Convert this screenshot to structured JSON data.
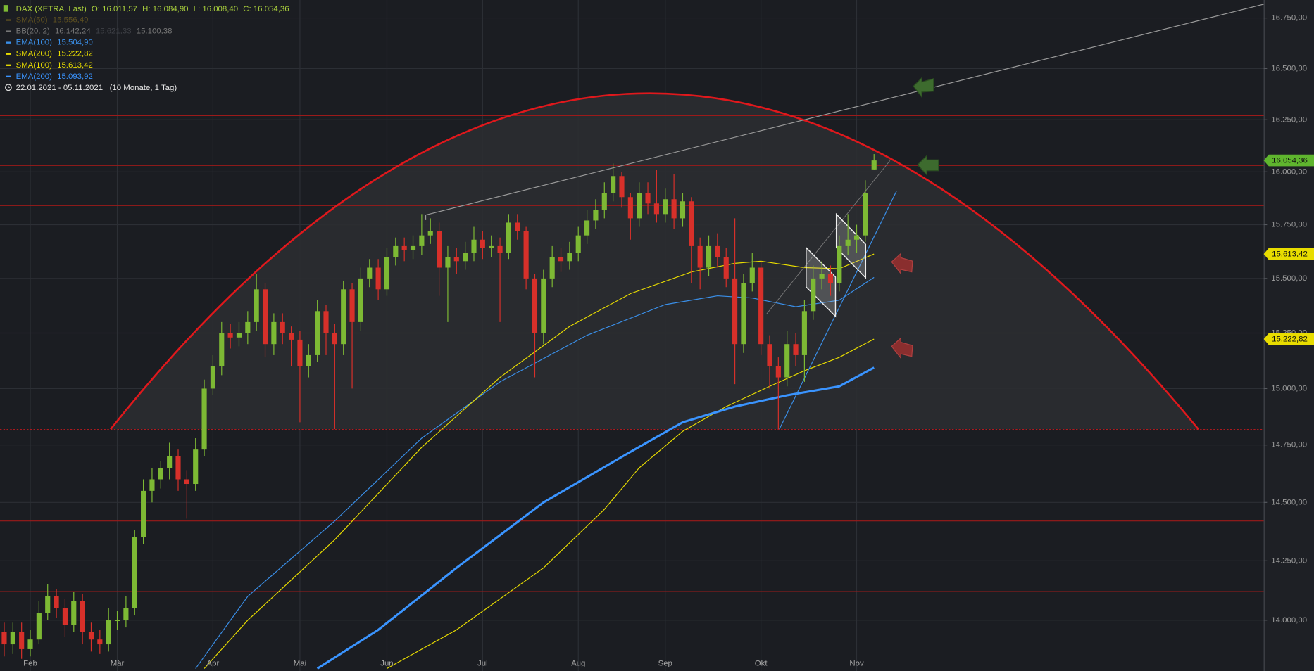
{
  "chart_data": {
    "type": "candlestick",
    "title": "DAX (XETRA, Last)",
    "ohlc_text": [
      "O: 16.011,57",
      "H: 16.084,90",
      "L: 16.008,40",
      "C: 16.054,36"
    ],
    "date_range": "22.01.2021 - 05.11.2021",
    "period": "(10 Monate, 1 Tag)",
    "log_scale": true,
    "grid": true,
    "ylim": [
      13790,
      16840
    ],
    "yticks": [
      {
        "value": 16750,
        "label": "16.750,00"
      },
      {
        "value": 16500,
        "label": "16.500,00"
      },
      {
        "value": 16250,
        "label": "16.250,00"
      },
      {
        "value": 16000,
        "label": "16.000,00"
      },
      {
        "value": 15750,
        "label": "15.750,00"
      },
      {
        "value": 15500,
        "label": "15.500,00"
      },
      {
        "value": 15250,
        "label": "15.250,00"
      },
      {
        "value": 15000,
        "label": "15.000,00"
      },
      {
        "value": 14750,
        "label": "14.750,00"
      },
      {
        "value": 14500,
        "label": "14.500,00"
      },
      {
        "value": 14250,
        "label": "14.250,00"
      },
      {
        "value": 14000,
        "label": "14.000,00"
      }
    ],
    "categories": [
      null,
      null,
      null,
      "Feb",
      null,
      null,
      null,
      null,
      null,
      null,
      null,
      null,
      null,
      "Mär",
      null,
      null,
      null,
      null,
      null,
      null,
      null,
      null,
      null,
      null,
      "Apr",
      null,
      null,
      null,
      null,
      null,
      null,
      null,
      null,
      null,
      "Mai",
      null,
      null,
      null,
      null,
      null,
      null,
      null,
      null,
      null,
      "Jun",
      null,
      null,
      null,
      null,
      null,
      null,
      null,
      null,
      null,
      null,
      "Jul",
      null,
      null,
      null,
      null,
      null,
      null,
      null,
      null,
      null,
      null,
      "Aug",
      null,
      null,
      null,
      null,
      null,
      null,
      null,
      null,
      null,
      "Sep",
      null,
      null,
      null,
      null,
      null,
      null,
      null,
      null,
      null,
      null,
      "Okt",
      null,
      null,
      null,
      null,
      null,
      null,
      null,
      null,
      null,
      null,
      "Nov",
      null,
      null
    ],
    "up_color": "#7db934",
    "down_color": "#d7302a",
    "last_label": "16.054,36",
    "open": [
      13950,
      13900,
      13950,
      13880,
      13920,
      14030,
      14100,
      14050,
      13980,
      14080,
      13950,
      13920,
      13900,
      14000,
      14000,
      14050,
      14350,
      14550,
      14600,
      14650,
      14700,
      14600,
      14580,
      14730,
      15000,
      15100,
      15250,
      15230,
      15250,
      15300,
      15450,
      15200,
      15300,
      15250,
      15220,
      15100,
      15150,
      15350,
      15250,
      15200,
      15450,
      15300,
      15500,
      15550,
      15450,
      15600,
      15650,
      15630,
      15650,
      15700,
      15720,
      15550,
      15600,
      15580,
      15620,
      15680,
      15640,
      15650,
      15620,
      15760,
      15720,
      15500,
      15250,
      15500,
      15600,
      15580,
      15620,
      15700,
      15770,
      15820,
      15900,
      15980,
      15880,
      15780,
      15900,
      15850,
      15800,
      15870,
      15780,
      15860,
      15650,
      15550,
      15650,
      15600,
      15500,
      15200,
      15480,
      15550,
      15200,
      15100,
      15050,
      15200,
      15150,
      15350,
      15500,
      15520,
      15480,
      15650,
      15680,
      15700,
      16011.57
    ],
    "high": [
      13990,
      13990,
      13990,
      13960,
      14080,
      14150,
      14130,
      14090,
      14120,
      14110,
      13990,
      13960,
      14050,
      14040,
      14100,
      14380,
      14600,
      14650,
      14680,
      14760,
      14730,
      14640,
      14780,
      15040,
      15150,
      15300,
      15290,
      15300,
      15350,
      15520,
      15480,
      15340,
      15340,
      15280,
      15260,
      15200,
      15400,
      15380,
      15290,
      15490,
      15480,
      15550,
      15590,
      15590,
      15640,
      15690,
      15690,
      15700,
      15800,
      15780,
      15760,
      15650,
      15640,
      15670,
      15740,
      15720,
      15700,
      15690,
      15800,
      15800,
      15740,
      15520,
      15540,
      15650,
      15640,
      15670,
      15740,
      15820,
      15870,
      15950,
      16040,
      16000,
      15900,
      15950,
      15950,
      16010,
      15920,
      15990,
      15900,
      15880,
      15690,
      15700,
      15710,
      15640,
      15780,
      15520,
      15620,
      15580,
      15240,
      15140,
      15260,
      15250,
      15400,
      15560,
      15580,
      15560,
      15700,
      15800,
      15750,
      15960,
      16084.9
    ],
    "low": [
      13850,
      13860,
      13840,
      13850,
      13900,
      14000,
      14010,
      13930,
      13950,
      13900,
      13870,
      13860,
      13870,
      13960,
      13970,
      14020,
      14320,
      14500,
      14560,
      14600,
      14550,
      14430,
      14550,
      14700,
      14970,
      15060,
      15180,
      15190,
      15200,
      15260,
      15140,
      15150,
      15200,
      15100,
      14850,
      15050,
      15120,
      15150,
      14820,
      15150,
      15000,
      15260,
      15460,
      15400,
      15420,
      15560,
      15580,
      15590,
      15610,
      15660,
      15420,
      15300,
      15520,
      15540,
      15580,
      15590,
      15600,
      15300,
      15590,
      15680,
      15450,
      15050,
      15200,
      15460,
      15530,
      15540,
      15580,
      15660,
      15730,
      15780,
      15860,
      15830,
      15680,
      15740,
      15800,
      15760,
      15760,
      15730,
      15740,
      15480,
      15450,
      15510,
      15550,
      15460,
      15020,
      15160,
      15440,
      15150,
      15000,
      14820,
      15010,
      15100,
      15030,
      15310,
      15450,
      15420,
      15440,
      15610,
      15620,
      15670,
      16008.4
    ],
    "close": [
      13900,
      13950,
      13880,
      13920,
      14030,
      14100,
      14050,
      13980,
      14080,
      13950,
      13920,
      13900,
      14000,
      14000,
      14050,
      14350,
      14550,
      14600,
      14650,
      14700,
      14600,
      14580,
      14730,
      15000,
      15100,
      15250,
      15230,
      15250,
      15300,
      15450,
      15200,
      15300,
      15250,
      15220,
      15100,
      15150,
      15350,
      15250,
      15200,
      15450,
      15300,
      15500,
      15550,
      15450,
      15600,
      15650,
      15630,
      15650,
      15700,
      15720,
      15550,
      15600,
      15580,
      15620,
      15680,
      15640,
      15650,
      15620,
      15760,
      15720,
      15500,
      15250,
      15500,
      15600,
      15580,
      15620,
      15700,
      15770,
      15820,
      15900,
      15980,
      15880,
      15780,
      15900,
      15850,
      15800,
      15870,
      15780,
      15860,
      15650,
      15550,
      15650,
      15600,
      15500,
      15200,
      15480,
      15550,
      15200,
      15100,
      15050,
      15200,
      15150,
      15350,
      15500,
      15520,
      15480,
      15650,
      15680,
      15700,
      15900,
      16054.36
    ],
    "hidden_indicators": [
      {
        "name": "SMA(50)",
        "color": "#5e5020",
        "values": [
          "15.556,49"
        ]
      },
      {
        "name": "BB(20, 2)",
        "color": "#777777",
        "values": [
          "16.142,24",
          "15.621,33",
          "15.100,38"
        ]
      }
    ],
    "series": [
      {
        "name": "EMA(100)",
        "color": "#3a8fe8",
        "width": 1,
        "legend_value": "15.504,90",
        "x": [
          22,
          28,
          38,
          48,
          57,
          67,
          76,
          82,
          86,
          91,
          96,
          100
        ],
        "values": [
          13800,
          14100,
          14420,
          14780,
          15030,
          15240,
          15380,
          15420,
          15410,
          15370,
          15400,
          15504.9
        ]
      },
      {
        "name": "SMA(200)",
        "color": "#e8dc00",
        "width": 1,
        "legend_value": "15.222,82",
        "tag_label": "15.222,82",
        "x": [
          44,
          52,
          62,
          69,
          73,
          78,
          83,
          88,
          92,
          96,
          100
        ],
        "values": [
          13800,
          13960,
          14220,
          14470,
          14650,
          14810,
          14920,
          15010,
          15080,
          15140,
          15222.82
        ]
      },
      {
        "name": "SMA(100)",
        "color": "#e8dc00",
        "width": 1,
        "legend_value": "15.613,42",
        "tag_label": "15.613,42",
        "x": [
          23,
          28,
          38,
          48,
          57,
          65,
          72,
          79,
          84,
          87,
          92,
          96,
          100
        ],
        "values": [
          13800,
          14000,
          14340,
          14740,
          15050,
          15280,
          15430,
          15530,
          15570,
          15580,
          15550,
          15545,
          15613.42
        ]
      },
      {
        "name": "EMA(200)",
        "color": "#3a94ff",
        "width": 2.6,
        "legend_value": "15.093,92",
        "x": [
          36,
          43,
          52,
          62,
          72,
          78,
          84,
          90,
          96,
          100
        ],
        "values": [
          13800,
          13960,
          14220,
          14500,
          14720,
          14850,
          14920,
          14970,
          15010,
          15093.92
        ]
      }
    ],
    "hlines": [
      16270,
      16030,
      15840,
      14420,
      14120
    ],
    "hline_dotted": 14817,
    "hline_color": "#9c1a1a"
  }
}
